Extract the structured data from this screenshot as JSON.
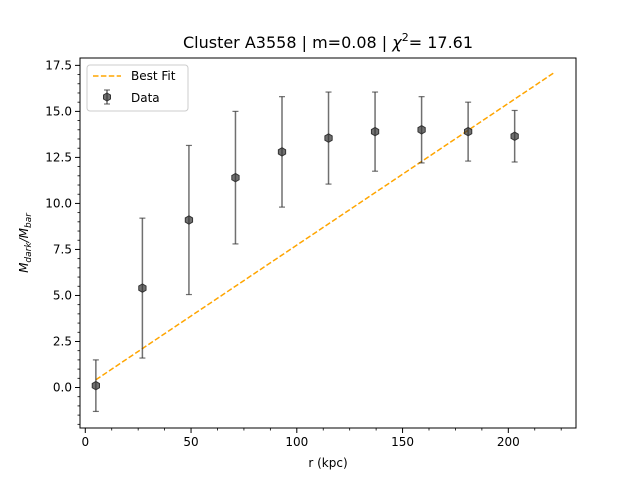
{
  "chart_data": {
    "type": "scatter",
    "title_prefix": "Cluster A3558 | m=0.08 | ",
    "title_chi": "χ",
    "title_sup": "2",
    "title_suffix": "= 17.61",
    "xlabel": "r (kpc)",
    "ylabel_main": "M",
    "ylabel_num_sub": "dark",
    "ylabel_slash": "/M",
    "ylabel_den_sub": "bar",
    "xlim": [
      -2.5,
      232
    ],
    "ylim": [
      -2.2,
      17.9
    ],
    "xticks": [
      0,
      50,
      100,
      150,
      200
    ],
    "xtick_labels": [
      "0",
      "50",
      "100",
      "150",
      "200"
    ],
    "yticks": [
      0.0,
      2.5,
      5.0,
      7.5,
      10.0,
      12.5,
      15.0,
      17.5
    ],
    "ytick_labels": [
      "0.0",
      "2.5",
      "5.0",
      "7.5",
      "10.0",
      "12.5",
      "15.0",
      "17.5"
    ],
    "grid": false,
    "legend_position": "top-left",
    "series": [
      {
        "name": "Data",
        "kind": "errorbar",
        "color": "#333333",
        "x": [
          5.0,
          27.0,
          49.0,
          71.0,
          93.0,
          115.0,
          137.0,
          159.0,
          181.0,
          203.0
        ],
        "y": [
          0.1,
          5.4,
          9.1,
          11.4,
          12.8,
          13.55,
          13.9,
          14.0,
          13.9,
          13.65
        ],
        "yerr_low": [
          1.4,
          3.8,
          4.05,
          3.6,
          3.0,
          2.5,
          2.15,
          1.8,
          1.6,
          1.4
        ],
        "yerr_high": [
          1.4,
          3.8,
          4.05,
          3.6,
          3.0,
          2.5,
          2.15,
          1.8,
          1.6,
          1.4
        ]
      },
      {
        "name": "Best Fit",
        "kind": "line",
        "color": "#ffa500",
        "x": [
          5.0,
          222.0
        ],
        "y": [
          0.42,
          17.13
        ]
      }
    ]
  }
}
